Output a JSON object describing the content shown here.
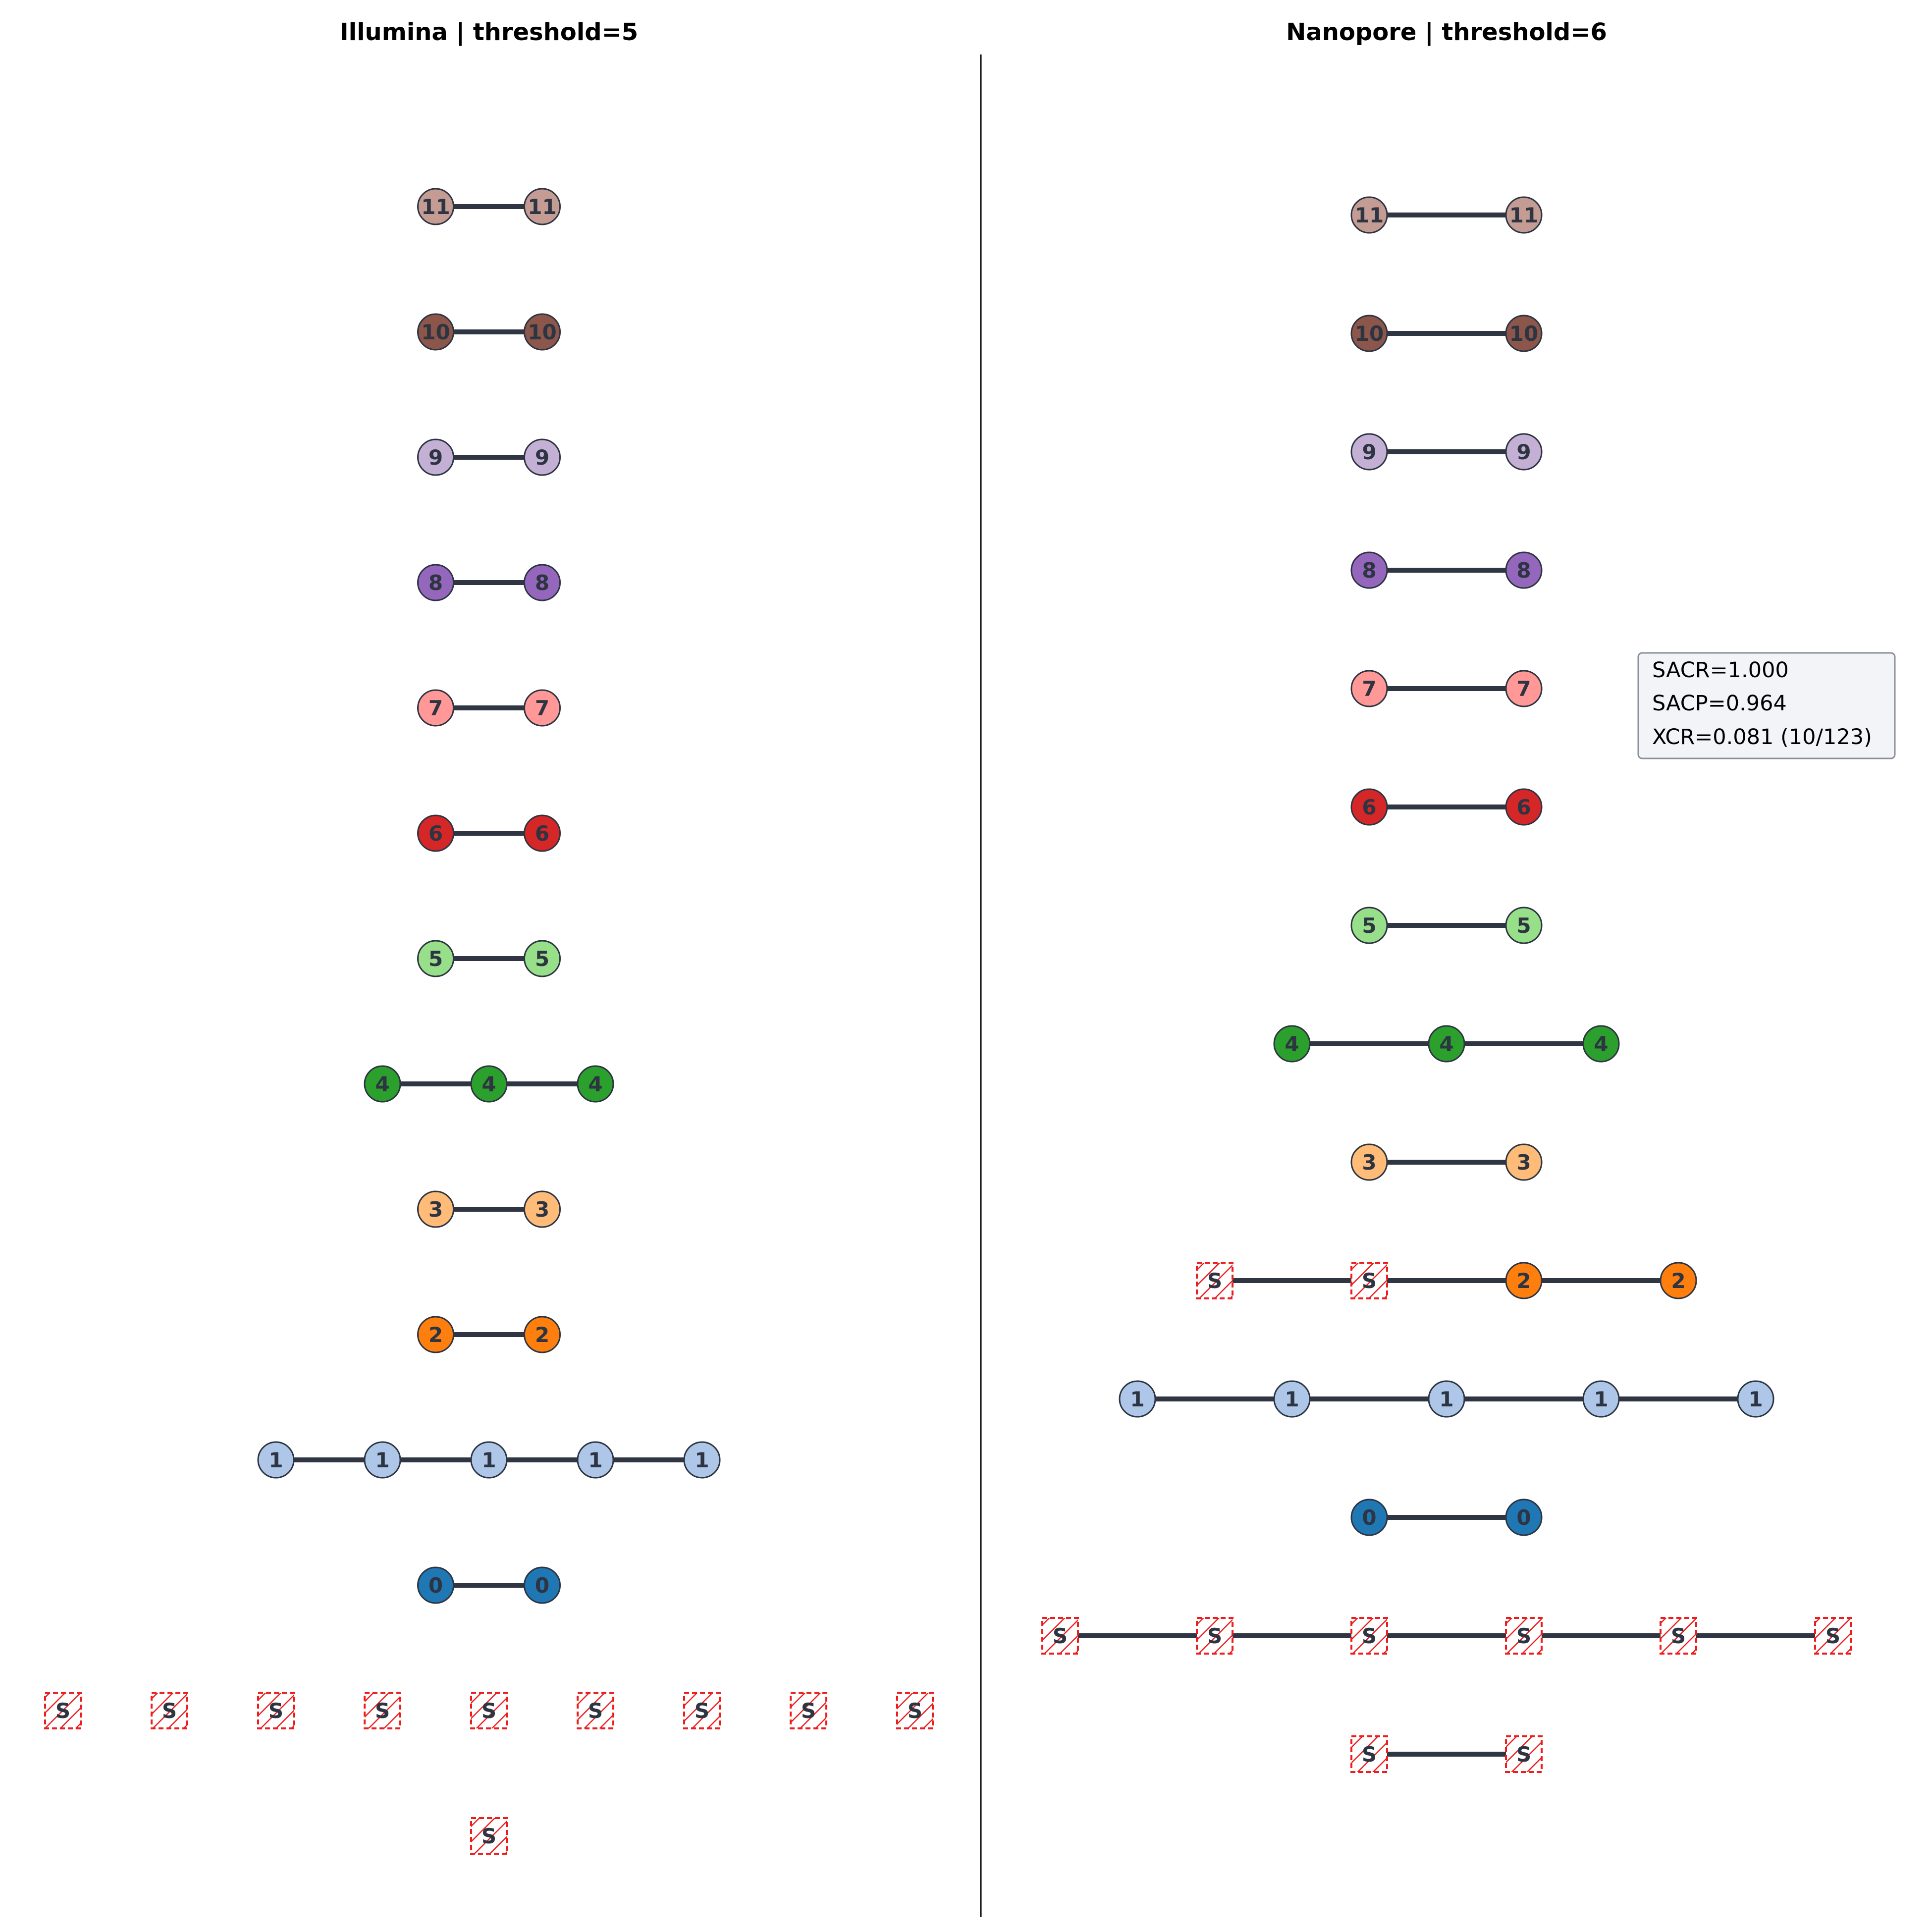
{
  "colors": {
    "edge": "#2f3542",
    "node_stroke": "#2d3442",
    "divider": "#000000",
    "singleton_stroke": "#ee1c1c",
    "singleton_hatch": "#ee1c1c",
    "metrics_bg": "#f2f4f7",
    "metrics_border": "#8a8f99",
    "cluster": {
      "0": "#1f77b4",
      "1": "#aec7e8",
      "2": "#ff7f0e",
      "3": "#ffbb78",
      "4": "#2ca02c",
      "5": "#98df8a",
      "6": "#d62728",
      "7": "#ff9896",
      "8": "#9467bd",
      "9": "#c5b0d5",
      "10": "#8c564b",
      "11": "#c49c94"
    }
  },
  "left_panel": {
    "title": "Illumina | threshold=5",
    "rows": [
      {
        "label": "11",
        "count": 2,
        "kind": "cluster"
      },
      {
        "label": "10",
        "count": 2,
        "kind": "cluster"
      },
      {
        "label": "9",
        "count": 2,
        "kind": "cluster"
      },
      {
        "label": "8",
        "count": 2,
        "kind": "cluster"
      },
      {
        "label": "7",
        "count": 2,
        "kind": "cluster"
      },
      {
        "label": "6",
        "count": 2,
        "kind": "cluster"
      },
      {
        "label": "5",
        "count": 2,
        "kind": "cluster"
      },
      {
        "label": "4",
        "count": 3,
        "kind": "cluster"
      },
      {
        "label": "3",
        "count": 2,
        "kind": "cluster"
      },
      {
        "label": "2",
        "count": 2,
        "kind": "cluster"
      },
      {
        "label": "1",
        "count": 5,
        "kind": "cluster"
      },
      {
        "label": "0",
        "count": 2,
        "kind": "cluster"
      },
      {
        "label": "S",
        "count": 9,
        "kind": "singleton",
        "connected": false
      },
      {
        "label": "S",
        "count": 1,
        "kind": "singleton",
        "connected": false
      }
    ]
  },
  "right_panel": {
    "title": "Nanopore | threshold=6",
    "rows": [
      {
        "nodes": [
          "11",
          "11"
        ]
      },
      {
        "nodes": [
          "10",
          "10"
        ]
      },
      {
        "nodes": [
          "9",
          "9"
        ]
      },
      {
        "nodes": [
          "8",
          "8"
        ]
      },
      {
        "nodes": [
          "7",
          "7"
        ]
      },
      {
        "nodes": [
          "6",
          "6"
        ]
      },
      {
        "nodes": [
          "5",
          "5"
        ]
      },
      {
        "nodes": [
          "4",
          "4",
          "4"
        ]
      },
      {
        "nodes": [
          "3",
          "3"
        ]
      },
      {
        "nodes": [
          "S",
          "S",
          "2",
          "2"
        ]
      },
      {
        "nodes": [
          "1",
          "1",
          "1",
          "1",
          "1"
        ]
      },
      {
        "nodes": [
          "0",
          "0"
        ]
      },
      {
        "nodes": [
          "S",
          "S",
          "S",
          "S",
          "S",
          "S"
        ]
      },
      {
        "nodes": [
          "S",
          "S"
        ]
      }
    ],
    "metrics": {
      "sacr": "SACR=1.000",
      "sacp": "SACP=0.964",
      "xcr": "XCR=0.081 (10/123)"
    }
  }
}
